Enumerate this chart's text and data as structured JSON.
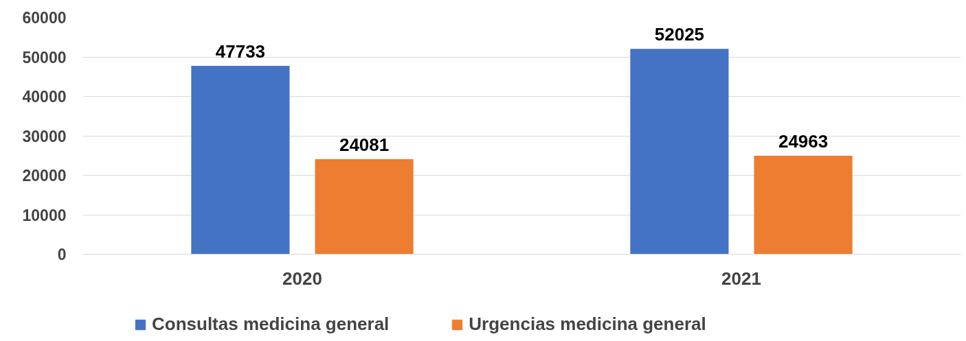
{
  "chart_data": {
    "type": "bar",
    "categories": [
      "2020",
      "2021"
    ],
    "series": [
      {
        "name": "Consultas medicina general",
        "color": "#4472c4",
        "values": [
          47733,
          52025
        ]
      },
      {
        "name": "Urgencias medicina general",
        "color": "#ed7d31",
        "values": [
          24081,
          24963
        ]
      }
    ],
    "ylim": [
      0,
      60000
    ],
    "yticks": [
      0,
      10000,
      20000,
      30000,
      40000,
      50000,
      60000
    ],
    "grid": "y",
    "legend": "bottom",
    "data_labels": true
  }
}
